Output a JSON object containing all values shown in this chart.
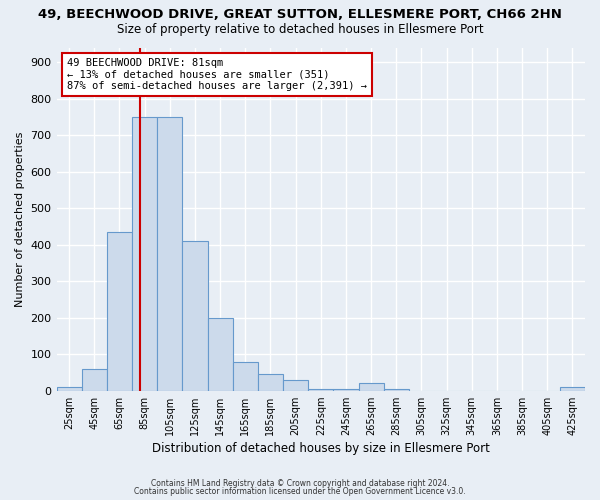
{
  "title": "49, BEECHWOOD DRIVE, GREAT SUTTON, ELLESMERE PORT, CH66 2HN",
  "subtitle": "Size of property relative to detached houses in Ellesmere Port",
  "xlabel": "Distribution of detached houses by size in Ellesmere Port",
  "ylabel": "Number of detached properties",
  "bin_edges": [
    15,
    35,
    55,
    75,
    95,
    115,
    135,
    155,
    175,
    195,
    215,
    235,
    255,
    275,
    295,
    315,
    335,
    355,
    375,
    395,
    415,
    435
  ],
  "bin_labels": [
    "25sqm",
    "45sqm",
    "65sqm",
    "85sqm",
    "105sqm",
    "125sqm",
    "145sqm",
    "165sqm",
    "185sqm",
    "205sqm",
    "225sqm",
    "245sqm",
    "265sqm",
    "285sqm",
    "305sqm",
    "325sqm",
    "345sqm",
    "365sqm",
    "385sqm",
    "405sqm",
    "425sqm"
  ],
  "counts": [
    10,
    60,
    435,
    750,
    750,
    410,
    200,
    78,
    45,
    30,
    5,
    5,
    20,
    5,
    0,
    0,
    0,
    0,
    0,
    0,
    10
  ],
  "bar_color": "#ccdaeb",
  "bar_edgecolor": "#6699cc",
  "vline_x": 81,
  "vline_color": "#cc0000",
  "annotation_text": "49 BEECHWOOD DRIVE: 81sqm\n← 13% of detached houses are smaller (351)\n87% of semi-detached houses are larger (2,391) →",
  "annotation_box_edgecolor": "#cc0000",
  "annotation_box_facecolor": "#ffffff",
  "ylim": [
    0,
    940
  ],
  "yticks": [
    0,
    100,
    200,
    300,
    400,
    500,
    600,
    700,
    800,
    900
  ],
  "background_color": "#e8eef5",
  "grid_color": "#ffffff",
  "footer1": "Contains HM Land Registry data © Crown copyright and database right 2024.",
  "footer2": "Contains public sector information licensed under the Open Government Licence v3.0."
}
